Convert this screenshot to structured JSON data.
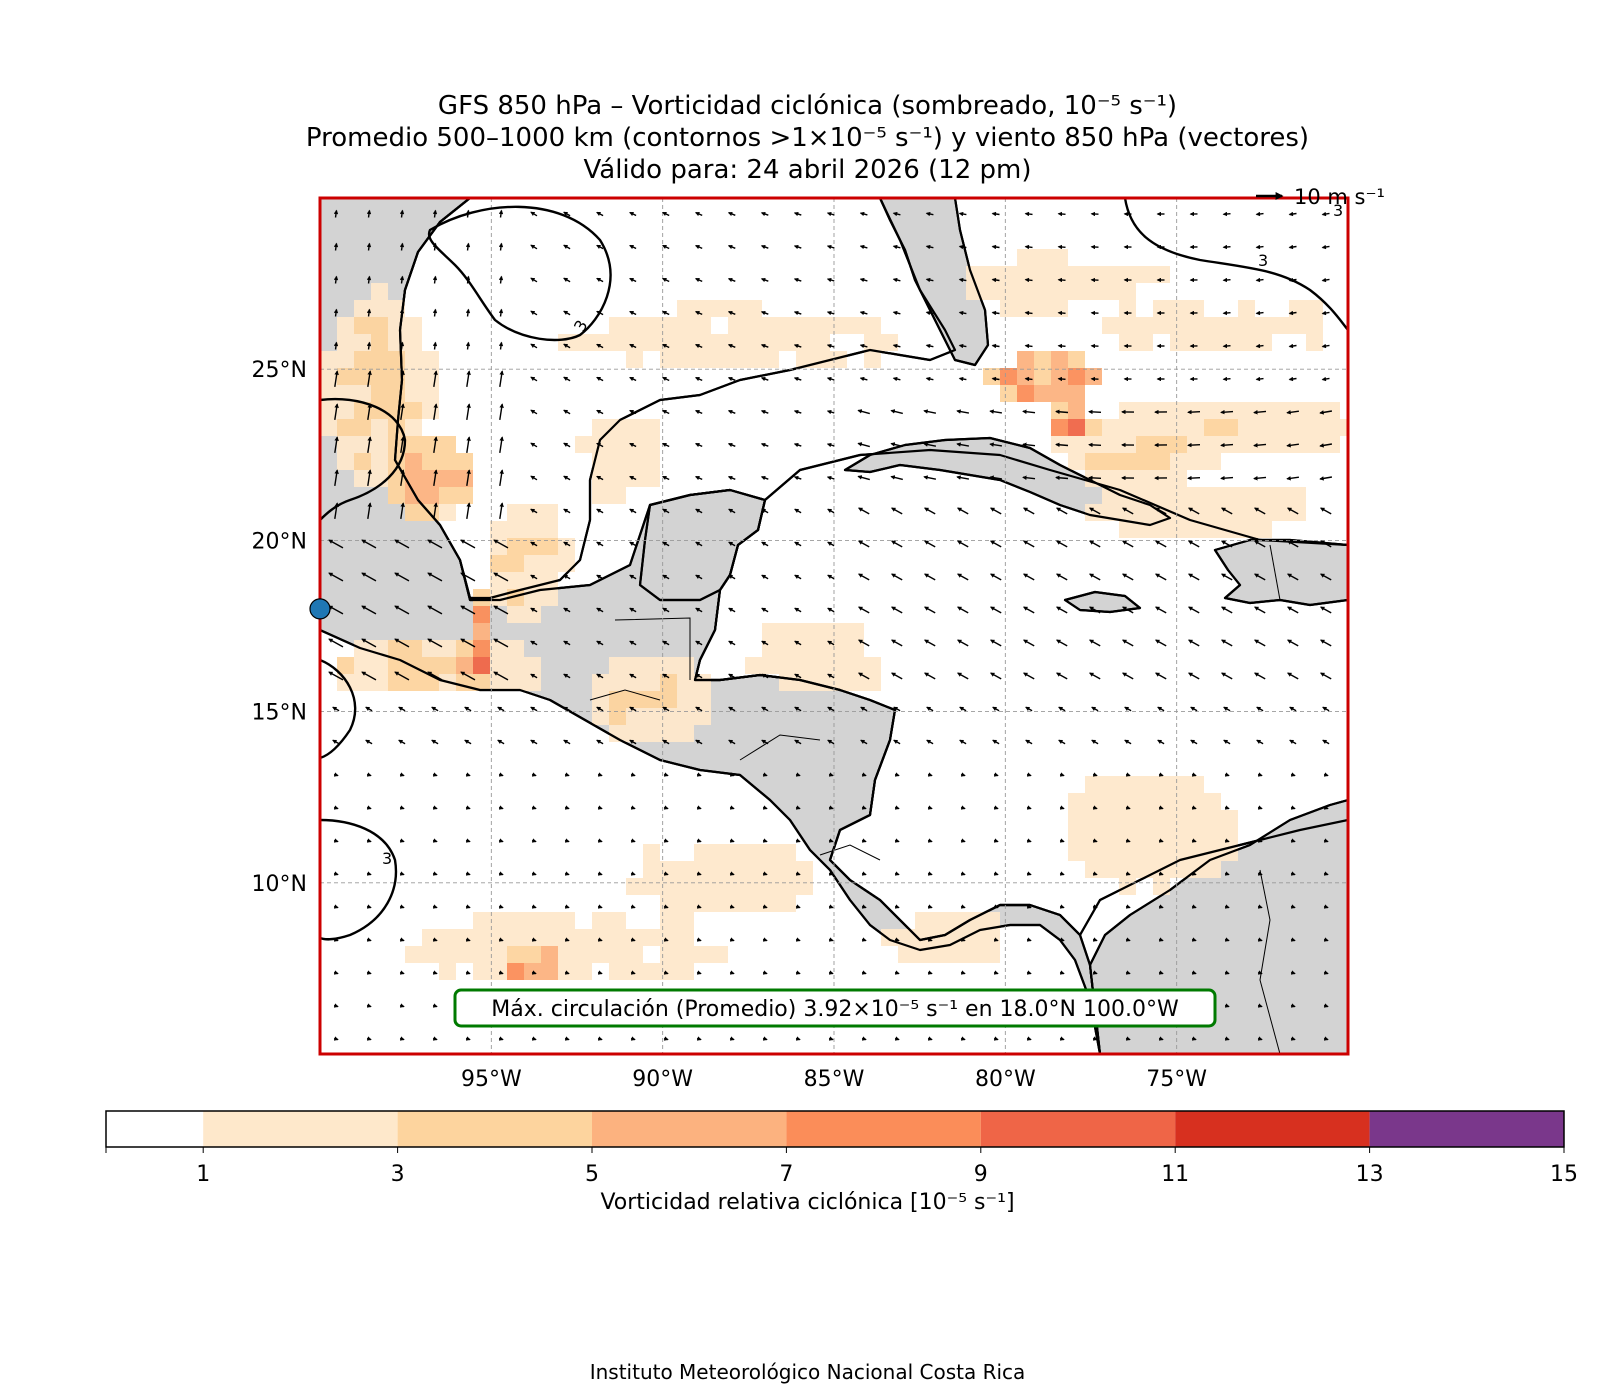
{
  "title": {
    "line1": "GFS 850 hPa – Vorticidad ciclónica (sombreado, 10⁻⁵ s⁻¹)",
    "line2": "Promedio 500–1000 km (contornos >1×10⁻⁵ s⁻¹) y viento 850 hPa (vectores)",
    "line3": "Válido para: 24 abril 2026 (12 pm)"
  },
  "map": {
    "lon_range": [
      -100,
      -70
    ],
    "lat_range": [
      5,
      30
    ],
    "lat_ticks": [
      {
        "label": "25°N",
        "value": 25
      },
      {
        "label": "20°N",
        "value": 20
      },
      {
        "label": "15°N",
        "value": 15
      },
      {
        "label": "10°N",
        "value": 10
      }
    ],
    "lon_ticks": [
      {
        "label": "95°W",
        "value": -95
      },
      {
        "label": "90°W",
        "value": -90
      },
      {
        "label": "85°W",
        "value": -85
      },
      {
        "label": "80°W",
        "value": -80
      },
      {
        "label": "75°W",
        "value": -75
      }
    ],
    "reference_vector_label": "10 m s⁻¹",
    "contour_label": "3",
    "max_box_text": "Máx. circulación (Promedio) 3.92×10⁻⁵ s⁻¹ en 18.0°N 100.0°W",
    "max_point": {
      "lat": 18.0,
      "lon": -100.0
    },
    "colors": {
      "land": "#d3d3d3",
      "frame": "#cc0000",
      "max_box": "#007a00",
      "max_marker": "#1f77b4"
    }
  },
  "colorbar": {
    "label": "Vorticidad relativa ciclónica [10⁻⁵ s⁻¹]",
    "ticks": [
      "1",
      "3",
      "5",
      "7",
      "9",
      "11",
      "13",
      "15"
    ],
    "bins": [
      {
        "from": 0,
        "to": 1,
        "color": "#ffffff"
      },
      {
        "from": 1,
        "to": 3,
        "color": "#fee8cb"
      },
      {
        "from": 3,
        "to": 5,
        "color": "#fdd49e"
      },
      {
        "from": 5,
        "to": 7,
        "color": "#fcb27f"
      },
      {
        "from": 7,
        "to": 9,
        "color": "#fb8d59"
      },
      {
        "from": 9,
        "to": 11,
        "color": "#ef6547"
      },
      {
        "from": 11,
        "to": 13,
        "color": "#d7301f"
      },
      {
        "from": 13,
        "to": 15,
        "color": "#7a378b"
      }
    ]
  },
  "footer": "Instituto Meteorológico Nacional Costa Rica"
}
